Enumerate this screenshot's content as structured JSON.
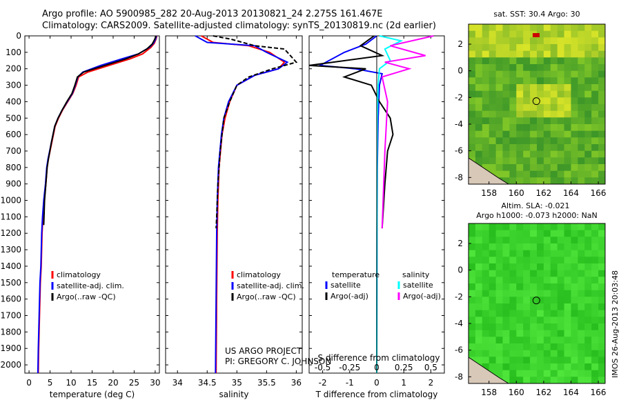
{
  "header": {
    "line1": "Argo profile: AO 5900985_282 20-Aug-2013 20130821_24 2.275S 161.467E",
    "line2": "Climatology: CARS2009. Satellite-adjusted climatology: synTS_20130819.nc (2d earlier)"
  },
  "colors": {
    "climatology": "#ff0000",
    "satellite": "#0000ff",
    "argo": "#000000",
    "sat_salinity": "#00ffff",
    "argo_salinity": "#ff00ff"
  },
  "depth_axis": {
    "ticks": [
      0,
      100,
      200,
      300,
      400,
      500,
      600,
      700,
      800,
      900,
      1000,
      1100,
      1200,
      1300,
      1400,
      1500,
      1600,
      1700,
      1800,
      1900,
      2000
    ],
    "range": [
      0,
      2050
    ],
    "reversed": true
  },
  "chart_data": [
    {
      "type": "line",
      "id": "temperature",
      "xlabel": "temperature (deg C)",
      "ylabel": "",
      "xlim": [
        -1,
        31
      ],
      "xticks": [
        0,
        5,
        10,
        15,
        20,
        25,
        30
      ],
      "series": [
        {
          "name": "climatology",
          "color": "#ff0000",
          "x": [
            30.4,
            30.2,
            29.8,
            29,
            27,
            24,
            19,
            14,
            11.8,
            11.2,
            10.4,
            9.2,
            8,
            7,
            6.2,
            5.4,
            4.6,
            4.3,
            4,
            3.6,
            3.3,
            3.1,
            2.9,
            2.7,
            2.5,
            2.4,
            2.3,
            2.2
          ],
          "y": [
            0,
            20,
            45,
            70,
            110,
            140,
            180,
            220,
            250,
            300,
            350,
            400,
            450,
            500,
            550,
            650,
            750,
            800,
            900,
            1000,
            1100,
            1200,
            1400,
            1500,
            1700,
            1800,
            1900,
            2050
          ]
        },
        {
          "name": "satellite-adj. clim.",
          "color": "#0000ff",
          "x": [
            30.3,
            30.1,
            29.6,
            28.6,
            26,
            22,
            17,
            12.8,
            11.6,
            11,
            10.3,
            9.1,
            7.9,
            6.9,
            6.1,
            5.3,
            4.5,
            4.2,
            3.9,
            3.5,
            3.2,
            3,
            2.8,
            2.6,
            2.4,
            2.3,
            2.2,
            2.1
          ],
          "y": [
            0,
            20,
            45,
            70,
            110,
            140,
            180,
            220,
            250,
            300,
            350,
            400,
            450,
            500,
            550,
            650,
            750,
            800,
            900,
            1000,
            1100,
            1200,
            1400,
            1500,
            1700,
            1800,
            1900,
            2050
          ]
        },
        {
          "name": "Argo(..raw -QC)",
          "color": "#000000",
          "x": [
            30.2,
            29.9,
            29.3,
            28,
            26,
            23,
            18,
            13,
            11.5,
            10.9,
            10.2,
            9,
            7.9,
            6.9,
            6.1,
            5.3,
            4.6,
            4.3,
            4,
            3.7,
            3.5
          ],
          "y": [
            0,
            20,
            50,
            80,
            110,
            140,
            180,
            220,
            250,
            300,
            350,
            400,
            450,
            500,
            550,
            650,
            750,
            800,
            900,
            1000,
            1150
          ]
        }
      ]
    },
    {
      "type": "line",
      "id": "salinity",
      "xlabel": "salinity",
      "ylabel": "",
      "xlim": [
        33.8,
        36.1
      ],
      "xticks": [
        34,
        34.5,
        35,
        35.5,
        36
      ],
      "series": [
        {
          "name": "climatology",
          "color": "#ff0000",
          "x": [
            34.4,
            34.6,
            35.2,
            35.55,
            35.8,
            35.7,
            35.3,
            35.0,
            34.88,
            34.8,
            34.75,
            34.7,
            34.68,
            34.67,
            34.66,
            34.65
          ],
          "y": [
            0,
            40,
            60,
            100,
            160,
            200,
            240,
            300,
            400,
            500,
            600,
            800,
            1000,
            1200,
            1600,
            2050
          ]
        },
        {
          "name": "satellite-adj. clim.",
          "color": "#0000ff",
          "x": [
            34.3,
            34.5,
            35.3,
            35.5,
            35.85,
            35.7,
            35.3,
            35.0,
            34.86,
            34.78,
            34.74,
            34.69,
            34.67,
            34.66,
            34.65,
            34.64
          ],
          "y": [
            0,
            40,
            60,
            100,
            160,
            200,
            240,
            300,
            400,
            500,
            600,
            800,
            1000,
            1200,
            1600,
            2050
          ]
        },
        {
          "name": "Argo(..raw -QC)",
          "color": "#000000",
          "x": [
            34.6,
            34.9,
            35.3,
            35.8,
            35.9,
            36.0,
            35.6,
            35.2,
            35.0,
            34.88,
            34.78,
            34.72,
            34.68,
            34.66,
            34.65
          ],
          "y": [
            0,
            20,
            60,
            80,
            120,
            160,
            200,
            250,
            300,
            400,
            500,
            700,
            900,
            1100,
            1170
          ]
        }
      ]
    },
    {
      "type": "line",
      "id": "difference",
      "xlabel": "T difference from climatology",
      "xlabel_top": "S difference from climatology",
      "xlim": [
        -2.5,
        2.5
      ],
      "xticks": [
        -2,
        -1,
        0,
        1,
        2
      ],
      "xticks_top_labels": [
        "-0.5",
        "-0.25",
        "0",
        "0.25",
        "0.5"
      ],
      "legend_headers": [
        "temperature",
        "salinity"
      ],
      "series": [
        {
          "name": "satellite",
          "quantity": "temperature",
          "color": "#0000ff",
          "x": [
            0,
            -0.4,
            -1.2,
            -2.1,
            -0.8,
            0.2,
            0.1,
            0.05,
            0.02,
            0.01,
            0
          ],
          "y": [
            0,
            50,
            100,
            180,
            200,
            230,
            300,
            500,
            800,
            1200,
            2050
          ]
        },
        {
          "name": "Argo(-adj)",
          "quantity": "temperature",
          "color": "#000000",
          "x": [
            -0.1,
            -0.6,
            0.2,
            -2.5,
            -0.4,
            -1.2,
            -0.2,
            0.1,
            0.5,
            0.6,
            0.4,
            0.3,
            0.2
          ],
          "y": [
            0,
            60,
            120,
            180,
            200,
            250,
            300,
            400,
            500,
            600,
            700,
            900,
            1170
          ]
        },
        {
          "name": "satellite",
          "quantity": "salinity",
          "color": "#00ffff",
          "x": [
            0.1,
            0.9,
            0.3,
            0.5,
            0.1,
            0.05,
            0.02,
            0.01,
            0
          ],
          "y": [
            0,
            30,
            80,
            150,
            200,
            300,
            500,
            800,
            2050
          ]
        },
        {
          "name": "Argo(-adj)",
          "quantity": "salinity",
          "color": "#ff00ff",
          "x": [
            2.1,
            0.5,
            1.8,
            0.3,
            1.2,
            0.2,
            0.4,
            0.3,
            0.2
          ],
          "y": [
            0,
            60,
            120,
            160,
            200,
            250,
            400,
            700,
            1170
          ]
        }
      ]
    },
    {
      "type": "heatmap",
      "id": "sst_map",
      "title": "sat. SST: 30.4  Argo: 30",
      "xticks": [
        158,
        160,
        162,
        164,
        166
      ],
      "yticks": [
        2,
        0,
        -2,
        -4,
        -6,
        -8
      ],
      "xlim": [
        156.5,
        166.5
      ],
      "ylim": [
        -8.5,
        3.5
      ],
      "marker": {
        "lon": 161.467,
        "lat": -2.275
      }
    },
    {
      "type": "heatmap",
      "id": "sla_map",
      "title": "Altim. SLA: -0.021",
      "subtitle": "Argo h1000: -0.073  h2000: NaN",
      "xticks": [
        158,
        160,
        162,
        164,
        166
      ],
      "yticks": [
        2,
        0,
        -2,
        -4,
        -6,
        -8
      ],
      "xlim": [
        156.5,
        166.5
      ],
      "ylim": [
        -8.5,
        3.5
      ],
      "marker": {
        "lon": 161.467,
        "lat": -2.275
      }
    }
  ],
  "footer": {
    "project_line1": "US ARGO PROJECT",
    "project_line2": "PI: GREGORY C. JOHNSON",
    "stamp": "IMOS 26-Aug-2013 20:03:48"
  }
}
